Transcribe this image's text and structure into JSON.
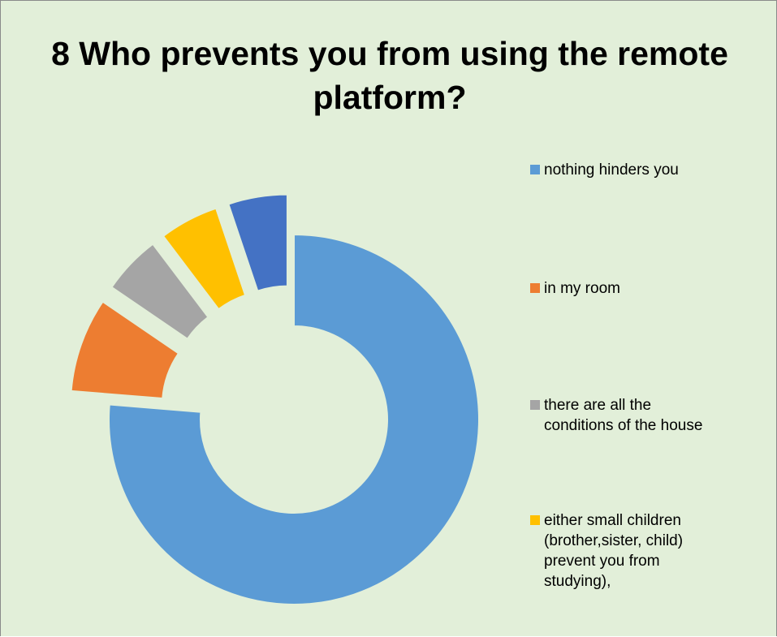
{
  "chart_data": {
    "type": "donut",
    "title": "8 Who prevents you from using the remote platform?",
    "legend_position": "right",
    "start_angle_deg": 0,
    "exploded": true,
    "series": [
      {
        "name": "nothing hinders you",
        "value": 74,
        "color": "#5b9bd5"
      },
      {
        "name": "in my room",
        "value": 8,
        "color": "#ed7d31"
      },
      {
        "name": "there are all the conditions of the house",
        "value": 5,
        "color": "#a5a5a5"
      },
      {
        "name": "either small children (brother,sister, child) prevent you from studying),",
        "value": 5,
        "color": "#ffc000"
      },
      {
        "name": "",
        "value": 5,
        "color": "#4472c4"
      }
    ]
  },
  "colors": {
    "background": "#e2efd9",
    "border": "#8a8a8a"
  }
}
